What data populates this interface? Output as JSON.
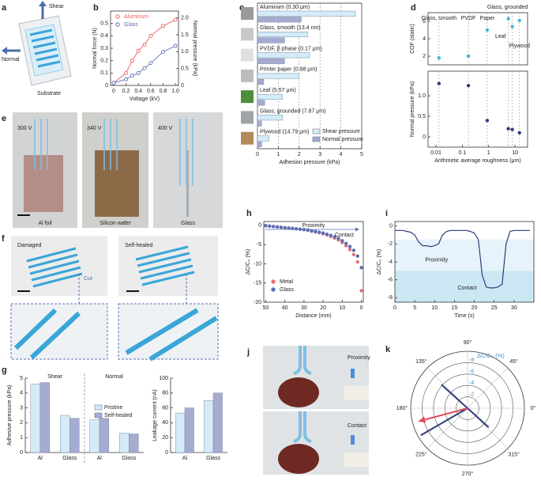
{
  "chart_data": [
    {
      "type": "line",
      "panel": "b",
      "xlabel": "Voltage (kV)",
      "ylabel": "Normal force (N)",
      "y2label": "Normal pressure (kPa)",
      "x": [
        0,
        0.2,
        0.3,
        0.4,
        0.5,
        0.6,
        0.8,
        1.0
      ],
      "series": [
        {
          "name": "Aluminum",
          "color": "#e8615a",
          "values": [
            0.02,
            0.1,
            0.2,
            0.28,
            0.33,
            0.4,
            0.48,
            0.53
          ]
        },
        {
          "name": "Glass",
          "color": "#5a6fb5",
          "values": [
            0.02,
            0.05,
            0.08,
            0.1,
            0.14,
            0.18,
            0.27,
            0.32
          ]
        }
      ],
      "xlim": [
        -0.05,
        1.05
      ],
      "xticks": [
        0,
        0.2,
        0.4,
        0.6,
        0.8,
        {
          "value": 1,
          "label": "1.0"
        }
      ],
      "ylim": [
        0,
        0.6
      ],
      "yticks": [
        0,
        0.1,
        0.2,
        0.3,
        0.4,
        0.5
      ],
      "y2lim": [
        0,
        2.2
      ],
      "y2ticks": [
        0,
        0.5,
        {
          "value": 1,
          "label": "1.0"
        },
        1.5,
        {
          "value": 2,
          "label": "2.0"
        }
      ],
      "markers": true,
      "legend": "top-left"
    },
    {
      "type": "hbar",
      "panel": "c",
      "xlabel": "Adhesion pressure (kPa)",
      "categories": [
        "Aluminum (0.30 μm)",
        "Glass, smooth (13.4 nm)",
        "PVDF, β phase (0.17 μm)",
        "Printer paper (0.88 μm)",
        "Leaf (5.57 μm)",
        "Glass, grounded (7.87 μm)",
        "Plywood (14.79 μm)"
      ],
      "series": [
        {
          "name": "Shear pressure",
          "color": "#d3ecf8",
          "values": [
            4.7,
            2.4,
            2.5,
            2.0,
            1.2,
            1.2,
            0.55
          ]
        },
        {
          "name": "Normal pressure",
          "color": "#a6abd0",
          "values": [
            2.1,
            1.3,
            1.3,
            0.3,
            0.35,
            0.2,
            0.2
          ]
        }
      ],
      "xlim": [
        0,
        5
      ],
      "xticks": [
        0,
        1,
        2,
        3,
        4,
        5
      ],
      "grid": true,
      "legend": "bottom-right"
    },
    {
      "type": "scatter",
      "panel": "d",
      "ylabel": "COF (static)",
      "x": [
        0.013,
        0.17,
        0.88,
        5.57,
        7.87,
        14.79
      ],
      "values": [
        1.8,
        2.0,
        5.0,
        6.3,
        5.4,
        6.1
      ],
      "color": "#45b3de",
      "xlim": [
        0.005,
        30
      ],
      "log": true,
      "ylim": [
        1,
        7
      ],
      "yticks": [
        2,
        4,
        6
      ],
      "droplines": true,
      "annotations": [
        "Glass, smooth",
        "PVDF",
        "Paper",
        "Glass, grounded",
        "Leaf",
        "Plywood"
      ]
    },
    {
      "type": "scatter",
      "xlabel": "Arithmetic average roughness (μm)",
      "ylabel": "Normal pressure (kPa)",
      "x": [
        0.013,
        0.17,
        0.88,
        5.57,
        7.87,
        14.79
      ],
      "values": [
        1.3,
        1.25,
        0.4,
        0.2,
        0.18,
        0.1
      ],
      "color": "#2e3d7c",
      "xlim": [
        0.005,
        30
      ],
      "log": true,
      "xticks": [
        0.01,
        0.1,
        1,
        10
      ],
      "ylim": [
        -0.25,
        1.6
      ],
      "yticks": [
        0,
        0.5,
        {
          "value": 1,
          "label": "1.0"
        }
      ],
      "droplines": true
    },
    {
      "type": "grouped-bar",
      "panel": "g",
      "ylabel": "Adhesive pressure (kPa)",
      "groups": [
        "Shear",
        "Normal"
      ],
      "categories": [
        "Al",
        "Glass",
        "Al",
        "Glass"
      ],
      "series": [
        {
          "name": "Pristine",
          "color": "#d3ecf8",
          "values": [
            4.6,
            2.5,
            2.2,
            1.3
          ]
        },
        {
          "name": "Self-healed",
          "color": "#a6abd0",
          "values": [
            4.7,
            2.3,
            2.3,
            1.25
          ]
        }
      ],
      "ylim": [
        0,
        5
      ],
      "yticks": [
        0,
        1,
        2,
        3,
        4,
        5
      ],
      "legend": "right"
    },
    {
      "type": "grouped-bar",
      "ylabel": "Leakage current (nA)",
      "categories": [
        "Al",
        "Glass"
      ],
      "series": [
        {
          "color": "#d3ecf8",
          "values": [
            53,
            70
          ]
        },
        {
          "color": "#a6abd0",
          "values": [
            60,
            80
          ]
        }
      ],
      "ylim": [
        0,
        100
      ],
      "yticks": [
        0,
        20,
        40,
        60,
        80,
        100
      ]
    },
    {
      "type": "scatter",
      "panel": "h",
      "xlabel": "Distance (mm)",
      "ylabel": "ΔC/C₀ (%)",
      "x": [
        50,
        48,
        46,
        44,
        42,
        40,
        38,
        36,
        34,
        32,
        30,
        28,
        26,
        24,
        22,
        20,
        18,
        16,
        14,
        12,
        10,
        8,
        6,
        4,
        2,
        0
      ],
      "series": [
        {
          "name": "Metal",
          "color": "#e8707a",
          "values": [
            -0.1,
            -0.2,
            -0.3,
            -0.4,
            -0.5,
            -0.6,
            -0.7,
            -0.8,
            -0.9,
            -1.0,
            -1.1,
            -1.3,
            -1.5,
            -1.7,
            -1.9,
            -2.2,
            -2.5,
            -2.9,
            -3.3,
            -3.8,
            -4.5,
            -5.3,
            -6.3,
            -7.6,
            -9.5,
            -17
          ]
        },
        {
          "name": "Glass",
          "color": "#5a6fb5",
          "values": [
            -0.1,
            -0.2,
            -0.3,
            -0.4,
            -0.5,
            -0.6,
            -0.7,
            -0.8,
            -0.9,
            -1.0,
            -1.1,
            -1.2,
            -1.4,
            -1.6,
            -1.8,
            -2.0,
            -2.3,
            -2.6,
            -3.0,
            -3.4,
            -4.0,
            -4.7,
            -5.5,
            -6.5,
            -8.0,
            -11
          ]
        }
      ],
      "xlim": [
        51,
        -1
      ],
      "xticks": [
        50,
        40,
        30,
        20,
        10,
        0
      ],
      "ylim": [
        -20,
        1
      ],
      "yticks": [
        0,
        -5,
        -10,
        -15,
        -20
      ],
      "legend": "bottom-left",
      "annotations": [
        "Proximity",
        "Contact"
      ]
    },
    {
      "type": "line",
      "panel": "i",
      "xlabel": "Time (s)",
      "ylabel": "ΔC/C₀ (%)",
      "x": [
        0,
        1,
        2,
        3,
        4,
        5,
        6,
        7,
        8,
        9,
        10,
        11,
        12,
        13,
        14,
        15,
        16,
        17,
        18,
        19,
        20,
        21,
        22,
        23,
        24,
        25,
        26,
        27,
        28,
        29,
        30,
        31,
        32,
        33,
        34
      ],
      "values": [
        -0.5,
        -0.5,
        -0.5,
        -0.6,
        -0.7,
        -1.0,
        -1.8,
        -2.2,
        -2.2,
        -2.3,
        -2.2,
        -2.0,
        -1.0,
        -0.6,
        -0.5,
        -0.5,
        -0.5,
        -0.5,
        -0.5,
        -0.6,
        -0.8,
        -1.5,
        -5.5,
        -6.8,
        -6.9,
        -6.9,
        -6.8,
        -6.5,
        -2.0,
        -0.6,
        -0.5,
        -0.5,
        -0.5,
        -0.5,
        -0.5
      ],
      "color": "#2e3d7c",
      "xlim": [
        0,
        35
      ],
      "xticks": [
        0,
        5,
        10,
        15,
        20,
        25,
        30
      ],
      "ylim": [
        -8.5,
        0.5
      ],
      "yticks": [
        0,
        -2,
        -4,
        -6,
        -8
      ],
      "bands": [
        {
          "label": "Proximity",
          "range": [
            -5,
            -1.5
          ],
          "color": "#e6f3fa"
        },
        {
          "label": "Contact",
          "range": [
            -8.5,
            -5
          ],
          "color": "#cbe7f4"
        }
      ]
    },
    {
      "type": "polar",
      "panel": "k",
      "rlabel": "ΔC/C₀ (%)",
      "rlim": [
        0,
        -10
      ],
      "rticks": [
        -2,
        -4,
        -6,
        -8
      ],
      "angleticks": [
        {
          "value": 0,
          "label": "0°"
        },
        {
          "value": 45,
          "label": "45°"
        },
        {
          "value": 90,
          "label": "90°"
        },
        {
          "value": 135,
          "label": "135°"
        },
        {
          "value": 180,
          "label": "180°"
        },
        {
          "value": 225,
          "label": "225°"
        },
        {
          "value": 270,
          "label": "270°"
        },
        {
          "value": 315,
          "label": "315°"
        }
      ],
      "series": [
        {
          "color": "#2e3d7c",
          "points": [
            {
              "angle": 138,
              "r": -6.2
            },
            {
              "angle": 318,
              "r": -5
            },
            {
              "angle": 210,
              "r": -9.5
            }
          ]
        },
        {
          "color": "#e8475a",
          "arrow": true,
          "points": [
            {
              "angle": 195,
              "r": -9
            }
          ]
        }
      ]
    }
  ],
  "images": {
    "a": {
      "panel": "a",
      "labels": [
        "Shear",
        "Normal",
        "Substrate"
      ]
    },
    "e": {
      "panel": "e",
      "labels": [
        "300 V",
        "340 V",
        "400 V",
        "Al foil",
        "Silicon wafer",
        "Glass"
      ]
    },
    "f": {
      "panel": "f",
      "labels": [
        "Damaged",
        "Self-healed",
        "Cut"
      ]
    },
    "j": {
      "panel": "j",
      "labels": [
        "Proximity",
        "Contact"
      ]
    }
  }
}
